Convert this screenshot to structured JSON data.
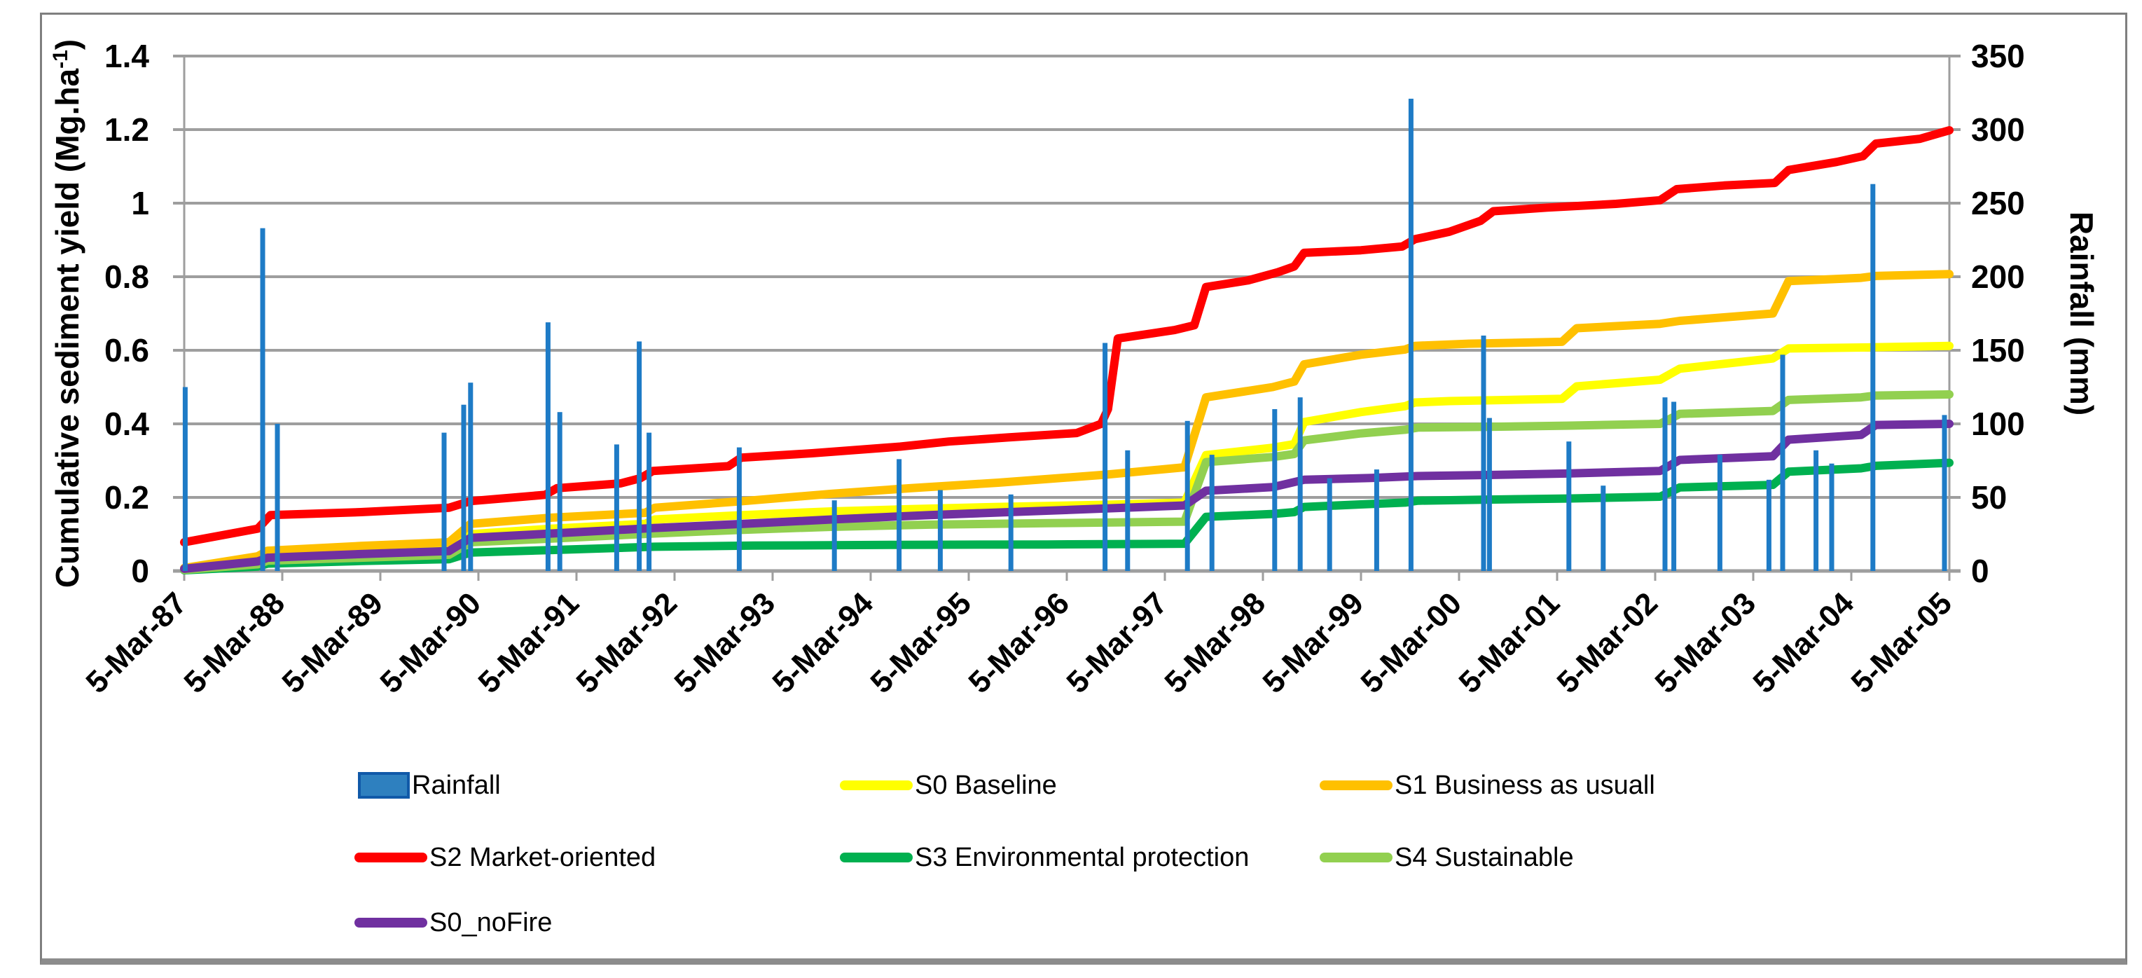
{
  "figure": {
    "border_color": "#7F7F7F",
    "bottom_rule_color": "#8C8C8C",
    "background": "#FFFFFF"
  },
  "chart_data": {
    "type": "combo-bar-line",
    "title": "",
    "grid_color": "#9E9E9E",
    "axis_color": "#9E9E9E",
    "x_axis": {
      "start_year": 1987.2,
      "end_year": 2005.2,
      "tick_labels": [
        "5-Mar-87",
        "5-Mar-88",
        "5-Mar-89",
        "5-Mar-90",
        "5-Mar-91",
        "5-Mar-92",
        "5-Mar-93",
        "5-Mar-94",
        "5-Mar-95",
        "5-Mar-96",
        "5-Mar-97",
        "5-Mar-98",
        "5-Mar-99",
        "5-Mar-00",
        "5-Mar-01",
        "5-Mar-02",
        "5-Mar-03",
        "5-Mar-04",
        "5-Mar-05"
      ]
    },
    "y_left": {
      "title_main": "Cumulative sediment yield (Mg.ha",
      "title_sup": "-1",
      "title_close": ")",
      "min": 0,
      "max": 1.4,
      "step": 0.2,
      "tick_labels": [
        "0",
        "0.2",
        "0.4",
        "0.6",
        "0.8",
        "1",
        "1.2",
        "1.4"
      ]
    },
    "y_right": {
      "title": "Rainfall (mm)",
      "min": 0,
      "max": 350,
      "step": 50,
      "tick_labels": [
        "0",
        "50",
        "100",
        "150",
        "200",
        "250",
        "300",
        "350"
      ]
    },
    "rainfall": {
      "name": "Rainfall",
      "type": "bar",
      "axis": "right",
      "color": "#1E7BC6",
      "legend_fill": "#2E80BF",
      "legend_border": "#1059A8",
      "points": [
        [
          1987.21,
          125
        ],
        [
          1988.0,
          233
        ],
        [
          1988.15,
          100
        ],
        [
          1989.85,
          94
        ],
        [
          1990.05,
          113
        ],
        [
          1990.12,
          128
        ],
        [
          1990.91,
          169
        ],
        [
          1991.03,
          108
        ],
        [
          1991.61,
          86
        ],
        [
          1991.84,
          156
        ],
        [
          1991.94,
          94
        ],
        [
          1992.86,
          84
        ],
        [
          1993.83,
          48
        ],
        [
          1994.49,
          76
        ],
        [
          1994.91,
          55
        ],
        [
          1995.63,
          52
        ],
        [
          1996.59,
          155
        ],
        [
          1996.82,
          82
        ],
        [
          1997.43,
          102
        ],
        [
          1997.68,
          79
        ],
        [
          1998.32,
          110
        ],
        [
          1998.58,
          118
        ],
        [
          1998.88,
          63
        ],
        [
          1999.36,
          69
        ],
        [
          1999.71,
          321
        ],
        [
          2000.45,
          160
        ],
        [
          2000.51,
          104
        ],
        [
          2001.32,
          88
        ],
        [
          2001.67,
          58
        ],
        [
          2002.3,
          118
        ],
        [
          2002.39,
          115
        ],
        [
          2002.86,
          79
        ],
        [
          2003.36,
          62
        ],
        [
          2003.5,
          147
        ],
        [
          2003.84,
          82
        ],
        [
          2004.0,
          73
        ],
        [
          2004.42,
          263
        ],
        [
          2005.15,
          106
        ]
      ]
    },
    "series": [
      {
        "name": "S0 Baseline",
        "color": "#FFFF00",
        "points": [
          [
            1987.2,
            0.005
          ],
          [
            1987.95,
            0.028
          ],
          [
            1988.05,
            0.042
          ],
          [
            1989.0,
            0.052
          ],
          [
            1989.9,
            0.062
          ],
          [
            1990.12,
            0.1
          ],
          [
            1990.95,
            0.115
          ],
          [
            1991.9,
            0.128
          ],
          [
            1992.0,
            0.14
          ],
          [
            1992.9,
            0.152
          ],
          [
            1993.8,
            0.162
          ],
          [
            1994.6,
            0.168
          ],
          [
            1995.5,
            0.174
          ],
          [
            1996.6,
            0.18
          ],
          [
            1997.4,
            0.186
          ],
          [
            1997.62,
            0.315
          ],
          [
            1998.3,
            0.335
          ],
          [
            1998.52,
            0.345
          ],
          [
            1998.62,
            0.405
          ],
          [
            1999.2,
            0.432
          ],
          [
            1999.65,
            0.448
          ],
          [
            1999.75,
            0.458
          ],
          [
            2000.1,
            0.462
          ],
          [
            2001.25,
            0.468
          ],
          [
            2001.4,
            0.502
          ],
          [
            2002.25,
            0.52
          ],
          [
            2002.45,
            0.55
          ],
          [
            2003.4,
            0.578
          ],
          [
            2003.56,
            0.605
          ],
          [
            2004.42,
            0.608
          ],
          [
            2005.2,
            0.612
          ]
        ]
      },
      {
        "name": "S1 Business as usuall",
        "color": "#FFC000",
        "points": [
          [
            1987.2,
            0.008
          ],
          [
            1987.95,
            0.04
          ],
          [
            1988.05,
            0.055
          ],
          [
            1989.0,
            0.068
          ],
          [
            1989.9,
            0.078
          ],
          [
            1990.12,
            0.128
          ],
          [
            1990.95,
            0.145
          ],
          [
            1991.9,
            0.158
          ],
          [
            1992.0,
            0.172
          ],
          [
            1992.9,
            0.19
          ],
          [
            1993.8,
            0.21
          ],
          [
            1994.6,
            0.225
          ],
          [
            1995.5,
            0.24
          ],
          [
            1996.6,
            0.262
          ],
          [
            1997.4,
            0.282
          ],
          [
            1997.62,
            0.472
          ],
          [
            1998.3,
            0.5
          ],
          [
            1998.52,
            0.515
          ],
          [
            1998.62,
            0.562
          ],
          [
            1999.2,
            0.588
          ],
          [
            1999.65,
            0.602
          ],
          [
            1999.75,
            0.612
          ],
          [
            2000.3,
            0.618
          ],
          [
            2001.25,
            0.623
          ],
          [
            2001.4,
            0.66
          ],
          [
            2002.25,
            0.672
          ],
          [
            2002.45,
            0.68
          ],
          [
            2003.4,
            0.7
          ],
          [
            2003.56,
            0.788
          ],
          [
            2004.3,
            0.797
          ],
          [
            2004.45,
            0.802
          ],
          [
            2005.2,
            0.807
          ]
        ]
      },
      {
        "name": "S2 Market-oriented",
        "color": "#FF0000",
        "points": [
          [
            1987.2,
            0.078
          ],
          [
            1987.95,
            0.115
          ],
          [
            1988.08,
            0.152
          ],
          [
            1989.0,
            0.16
          ],
          [
            1989.9,
            0.172
          ],
          [
            1990.12,
            0.19
          ],
          [
            1990.88,
            0.207
          ],
          [
            1991.0,
            0.225
          ],
          [
            1991.65,
            0.238
          ],
          [
            1991.85,
            0.252
          ],
          [
            1991.98,
            0.272
          ],
          [
            1992.75,
            0.285
          ],
          [
            1992.88,
            0.308
          ],
          [
            1993.6,
            0.32
          ],
          [
            1994.5,
            0.338
          ],
          [
            1995.0,
            0.352
          ],
          [
            1995.6,
            0.363
          ],
          [
            1996.3,
            0.375
          ],
          [
            1996.55,
            0.4
          ],
          [
            1996.62,
            0.44
          ],
          [
            1996.72,
            0.632
          ],
          [
            1997.3,
            0.655
          ],
          [
            1997.5,
            0.668
          ],
          [
            1997.62,
            0.772
          ],
          [
            1998.05,
            0.79
          ],
          [
            1998.35,
            0.812
          ],
          [
            1998.52,
            0.828
          ],
          [
            1998.62,
            0.865
          ],
          [
            1999.2,
            0.872
          ],
          [
            1999.62,
            0.882
          ],
          [
            1999.75,
            0.902
          ],
          [
            2000.1,
            0.922
          ],
          [
            2000.42,
            0.952
          ],
          [
            2000.55,
            0.978
          ],
          [
            2001.1,
            0.988
          ],
          [
            2001.8,
            0.998
          ],
          [
            2002.25,
            1.008
          ],
          [
            2002.42,
            1.038
          ],
          [
            2002.9,
            1.048
          ],
          [
            2003.42,
            1.055
          ],
          [
            2003.56,
            1.09
          ],
          [
            2004.05,
            1.112
          ],
          [
            2004.32,
            1.128
          ],
          [
            2004.45,
            1.162
          ],
          [
            2004.9,
            1.175
          ],
          [
            2005.2,
            1.198
          ]
        ]
      },
      {
        "name": "S3 Environmental protection",
        "color": "#00B050",
        "points": [
          [
            1987.2,
            0.002
          ],
          [
            1987.95,
            0.012
          ],
          [
            1988.05,
            0.02
          ],
          [
            1989.0,
            0.027
          ],
          [
            1989.9,
            0.032
          ],
          [
            1990.12,
            0.05
          ],
          [
            1990.95,
            0.057
          ],
          [
            1992.0,
            0.066
          ],
          [
            1993.0,
            0.069
          ],
          [
            1994.5,
            0.071
          ],
          [
            1996.0,
            0.072
          ],
          [
            1997.4,
            0.074
          ],
          [
            1997.62,
            0.147
          ],
          [
            1998.3,
            0.155
          ],
          [
            1998.52,
            0.16
          ],
          [
            1998.62,
            0.174
          ],
          [
            1999.2,
            0.181
          ],
          [
            1999.65,
            0.186
          ],
          [
            1999.78,
            0.191
          ],
          [
            2000.5,
            0.194
          ],
          [
            2001.3,
            0.197
          ],
          [
            2002.25,
            0.202
          ],
          [
            2002.45,
            0.227
          ],
          [
            2003.4,
            0.234
          ],
          [
            2003.56,
            0.27
          ],
          [
            2004.3,
            0.279
          ],
          [
            2004.45,
            0.286
          ],
          [
            2005.2,
            0.294
          ]
        ]
      },
      {
        "name": "S4 Sustainable",
        "color": "#92D050",
        "points": [
          [
            1987.2,
            0.003
          ],
          [
            1987.95,
            0.018
          ],
          [
            1988.05,
            0.028
          ],
          [
            1989.0,
            0.036
          ],
          [
            1989.9,
            0.044
          ],
          [
            1990.12,
            0.078
          ],
          [
            1990.95,
            0.088
          ],
          [
            1992.0,
            0.102
          ],
          [
            1992.9,
            0.112
          ],
          [
            1993.8,
            0.12
          ],
          [
            1994.8,
            0.126
          ],
          [
            1996.0,
            0.13
          ],
          [
            1997.4,
            0.134
          ],
          [
            1997.62,
            0.296
          ],
          [
            1998.3,
            0.31
          ],
          [
            1998.52,
            0.318
          ],
          [
            1998.62,
            0.355
          ],
          [
            1999.2,
            0.374
          ],
          [
            1999.65,
            0.384
          ],
          [
            1999.78,
            0.39
          ],
          [
            2000.5,
            0.392
          ],
          [
            2001.3,
            0.395
          ],
          [
            2002.25,
            0.4
          ],
          [
            2002.45,
            0.427
          ],
          [
            2003.4,
            0.435
          ],
          [
            2003.56,
            0.465
          ],
          [
            2004.3,
            0.472
          ],
          [
            2004.45,
            0.477
          ],
          [
            2005.2,
            0.48
          ]
        ]
      },
      {
        "name": "S0_noFire",
        "color": "#7030A0",
        "points": [
          [
            1987.2,
            0.006
          ],
          [
            1987.95,
            0.026
          ],
          [
            1988.05,
            0.036
          ],
          [
            1989.0,
            0.046
          ],
          [
            1989.9,
            0.054
          ],
          [
            1990.12,
            0.09
          ],
          [
            1990.95,
            0.102
          ],
          [
            1992.0,
            0.117
          ],
          [
            1992.9,
            0.128
          ],
          [
            1993.8,
            0.14
          ],
          [
            1994.8,
            0.152
          ],
          [
            1995.8,
            0.162
          ],
          [
            1996.6,
            0.17
          ],
          [
            1997.4,
            0.178
          ],
          [
            1997.62,
            0.218
          ],
          [
            1998.3,
            0.228
          ],
          [
            1998.62,
            0.248
          ],
          [
            1999.3,
            0.253
          ],
          [
            1999.78,
            0.258
          ],
          [
            2000.5,
            0.261
          ],
          [
            2001.3,
            0.265
          ],
          [
            2002.25,
            0.272
          ],
          [
            2002.45,
            0.302
          ],
          [
            2003.4,
            0.312
          ],
          [
            2003.56,
            0.357
          ],
          [
            2004.3,
            0.37
          ],
          [
            2004.45,
            0.397
          ],
          [
            2005.2,
            0.4
          ]
        ]
      }
    ],
    "layout_hints": {
      "grid": "horizontal-only",
      "legend_position": "bottom",
      "x_label_rotation_deg": -45,
      "bars_drawn_on_top": true
    }
  }
}
